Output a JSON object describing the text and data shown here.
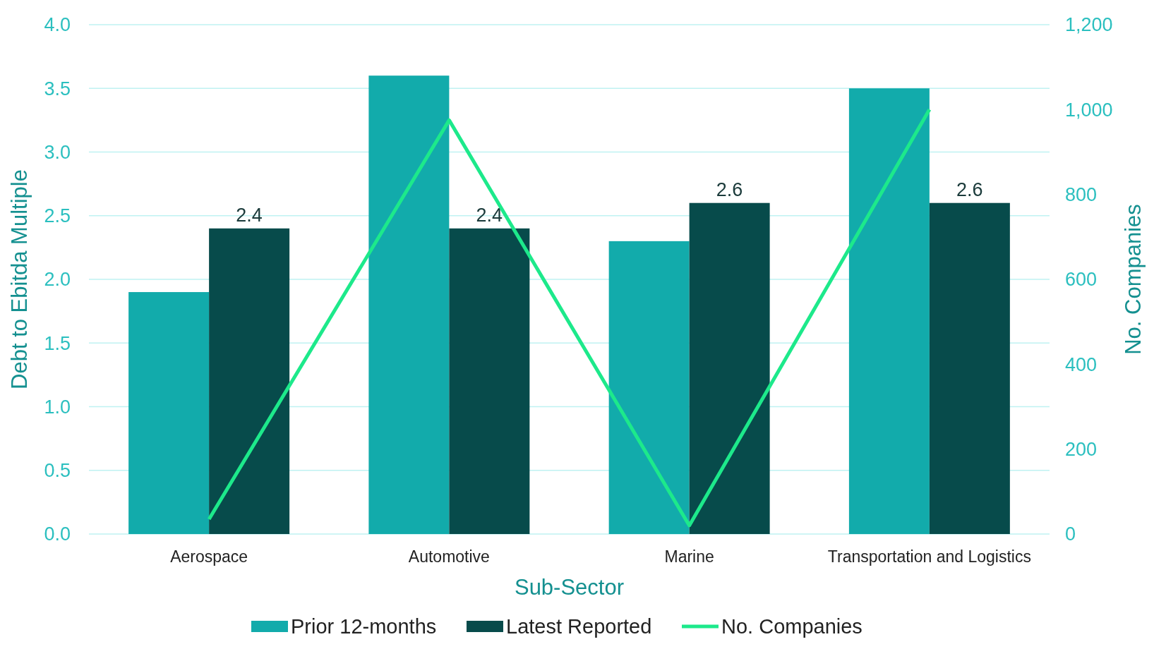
{
  "chart_data": {
    "type": "bar",
    "xlabel": "Sub-Sector",
    "ylabel": "Debt to Ebitda Multiple",
    "y2label": "No. Companies",
    "categories": [
      "Aerospace",
      "Automotive",
      "Marine",
      "Transportation and Logistics"
    ],
    "series": [
      {
        "name": "Prior 12-months",
        "color": "#12abab",
        "values": [
          1.9,
          3.6,
          2.3,
          3.5
        ]
      },
      {
        "name": "Latest Reported",
        "color": "#074b4b",
        "values": [
          2.4,
          2.4,
          2.6,
          2.6
        ],
        "value_labels": [
          "2.4",
          "2.4",
          "2.6",
          "2.6"
        ]
      },
      {
        "name": "No. Companies",
        "type": "line",
        "axis": "y2",
        "color": "#1de98b",
        "values": [
          35,
          975,
          20,
          1000
        ]
      }
    ],
    "ylim": [
      0,
      4
    ],
    "yticks": [
      {
        "value": 0,
        "label": "0.0"
      },
      {
        "value": 0.5,
        "label": "0.5"
      },
      {
        "value": 1,
        "label": "1.0"
      },
      {
        "value": 1.5,
        "label": "1.5"
      },
      {
        "value": 2,
        "label": "2.0"
      },
      {
        "value": 2.5,
        "label": "2.5"
      },
      {
        "value": 3,
        "label": "3.0"
      },
      {
        "value": 3.5,
        "label": "3.5"
      },
      {
        "value": 4,
        "label": "4.0"
      }
    ],
    "y2lim": [
      0,
      1200
    ],
    "y2ticks": [
      0,
      200,
      400,
      600,
      800,
      {
        "value": 1000,
        "label": "1,000"
      },
      {
        "value": 1200,
        "label": "1,200"
      }
    ],
    "grid": "y",
    "legend": "bottom",
    "marker": "none"
  }
}
